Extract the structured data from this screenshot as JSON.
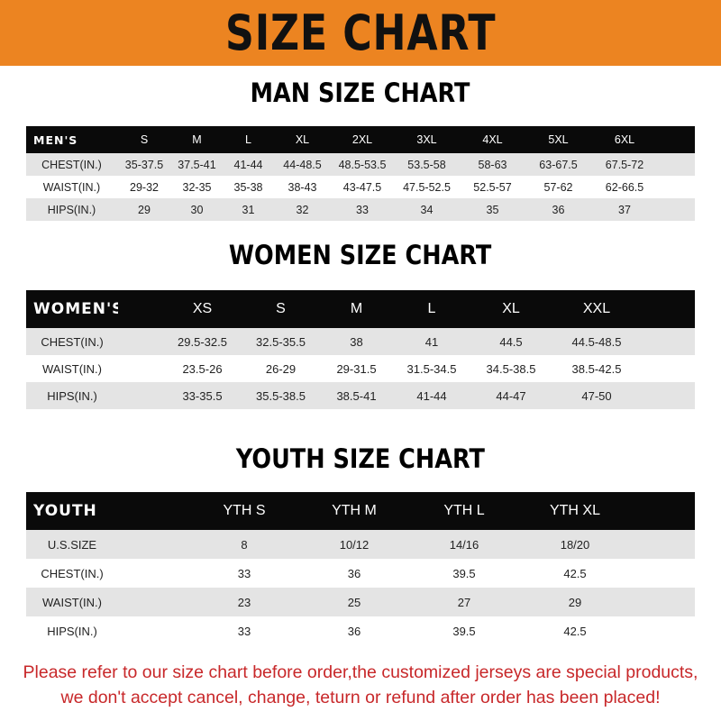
{
  "banner_title": "SIZE CHART",
  "colors": {
    "banner": "#ec8421",
    "header_row": "#0a0a0a",
    "stripe": "#e4e4e4",
    "note_text": "#c8282a"
  },
  "tables": {
    "men": {
      "title": "MAN SIZE CHART",
      "header_label": "MEN'S",
      "sizes": [
        "S",
        "M",
        "L",
        "XL",
        "2XL",
        "3XL",
        "4XL",
        "5XL",
        "6XL"
      ],
      "rows": [
        {
          "label": "CHEST(IN.)",
          "values": [
            "35-37.5",
            "37.5-41",
            "41-44",
            "44-48.5",
            "48.5-53.5",
            "53.5-58",
            "58-63",
            "63-67.5",
            "67.5-72"
          ]
        },
        {
          "label": "WAIST(IN.)",
          "values": [
            "29-32",
            "32-35",
            "35-38",
            "38-43",
            "43-47.5",
            "47.5-52.5",
            "52.5-57",
            "57-62",
            "62-66.5"
          ]
        },
        {
          "label": "HIPS(IN.)",
          "values": [
            "29",
            "30",
            "31",
            "32",
            "33",
            "34",
            "35",
            "36",
            "37"
          ]
        }
      ]
    },
    "women": {
      "title": "WOMEN SIZE CHART",
      "header_label": "WOMEN'S",
      "sizes": [
        "XS",
        "S",
        "M",
        "L",
        "XL",
        "XXL"
      ],
      "rows": [
        {
          "label": "CHEST(IN.)",
          "values": [
            "29.5-32.5",
            "32.5-35.5",
            "38",
            "41",
            "44.5",
            "44.5-48.5"
          ]
        },
        {
          "label": "WAIST(IN.)",
          "values": [
            "23.5-26",
            "26-29",
            "29-31.5",
            "31.5-34.5",
            "34.5-38.5",
            "38.5-42.5"
          ]
        },
        {
          "label": "HIPS(IN.)",
          "values": [
            "33-35.5",
            "35.5-38.5",
            "38.5-41",
            "41-44",
            "44-47",
            "47-50"
          ]
        }
      ]
    },
    "youth": {
      "title": "YOUTH SIZE CHART",
      "header_label": "YOUTH",
      "sizes": [
        "YTH S",
        "YTH M",
        "YTH L",
        "YTH XL"
      ],
      "rows": [
        {
          "label": "U.S.SIZE",
          "values": [
            "8",
            "10/12",
            "14/16",
            "18/20"
          ]
        },
        {
          "label": "CHEST(IN.)",
          "values": [
            "33",
            "36",
            "39.5",
            "42.5"
          ]
        },
        {
          "label": "WAIST(IN.)",
          "values": [
            "23",
            "25",
            "27",
            "29"
          ]
        },
        {
          "label": "HIPS(IN.)",
          "values": [
            "33",
            "36",
            "39.5",
            "42.5"
          ]
        }
      ]
    }
  },
  "notice": {
    "line1": "Please refer to our size chart before order,the customized jerseys are special products,",
    "line2": "we don't accept cancel, change, teturn or refund after order has been placed!"
  }
}
